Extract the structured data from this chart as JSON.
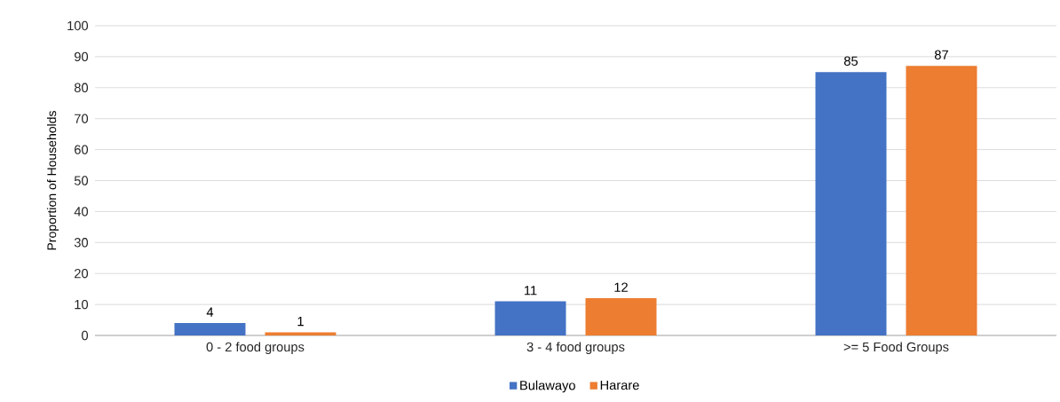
{
  "chart_data": {
    "type": "bar",
    "ylabel": "Proportion of Households",
    "categories": [
      "0 - 2 food groups",
      "3 - 4 food groups",
      ">= 5 Food Groups"
    ],
    "series": [
      {
        "name": "Bulawayo",
        "color": "#4472c4",
        "values": [
          4,
          11,
          85
        ]
      },
      {
        "name": "Harare",
        "color": "#ed7d31",
        "values": [
          1,
          12,
          87
        ]
      }
    ],
    "ylim": [
      0,
      100
    ],
    "yticks": [
      0,
      10,
      20,
      30,
      40,
      50,
      60,
      70,
      80,
      90,
      100
    ],
    "grid": "y",
    "legend": "bottom",
    "data_labels": true
  }
}
